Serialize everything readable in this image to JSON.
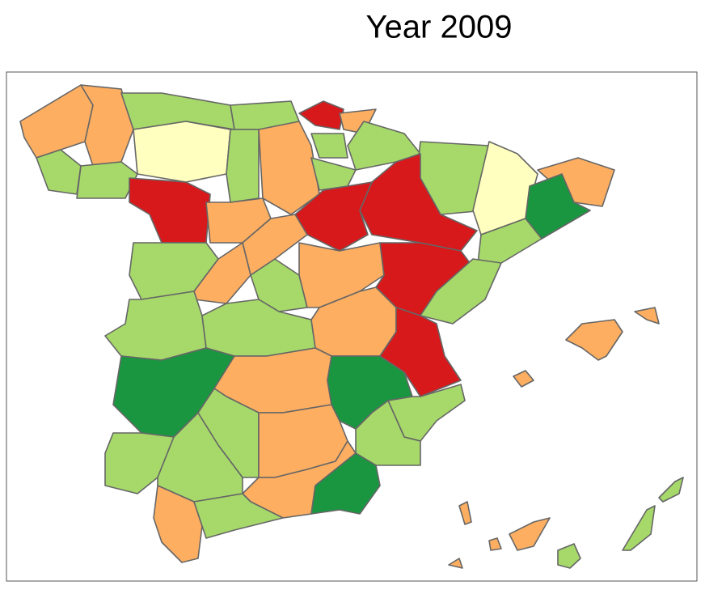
{
  "title": "Year 2009"
}
